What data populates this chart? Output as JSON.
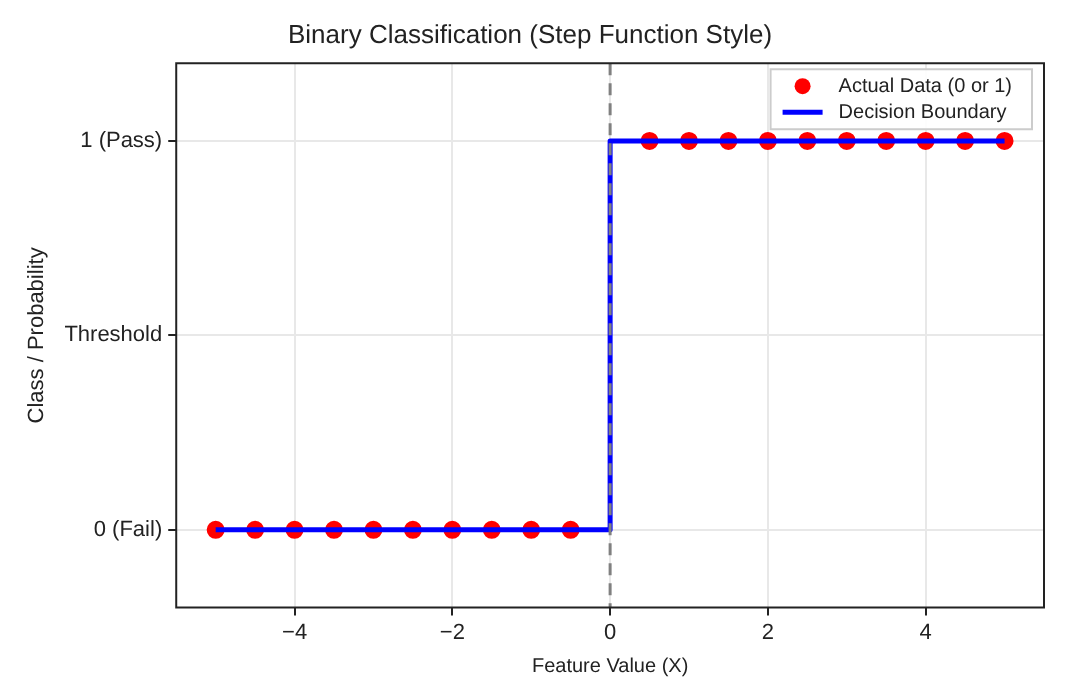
{
  "chart_data": {
    "type": "scatter",
    "title": "Binary Classification (Step Function Style)",
    "xlabel": "Feature Value (X)",
    "ylabel": "Class / Probability",
    "xlim": [
      -5.5,
      5.5
    ],
    "xticks": [
      -4,
      -2,
      0,
      2,
      4
    ],
    "ylim": [
      -0.2,
      1.2
    ],
    "yticks": [
      {
        "value": 0,
        "label": "0 (Fail)"
      },
      {
        "value": 0.5,
        "label": "Threshold"
      },
      {
        "value": 1,
        "label": "1 (Pass)"
      }
    ],
    "grid": true,
    "legend": "top right",
    "series": [
      {
        "name": "Actual Data (0 or 1)",
        "type": "scatter",
        "marker": "circle",
        "color": "#ff0000",
        "x": [
          -5,
          -4.5,
          -4,
          -3.5,
          -3,
          -2.5,
          -2,
          -1.5,
          -1,
          -0.5,
          0.5,
          1,
          1.5,
          2,
          2.5,
          3,
          3.5,
          4,
          4.5,
          5
        ],
        "values": [
          0,
          0,
          0,
          0,
          0,
          0,
          0,
          0,
          0,
          0,
          1,
          1,
          1,
          1,
          1,
          1,
          1,
          1,
          1,
          1
        ]
      },
      {
        "name": "Decision Boundary",
        "type": "step",
        "marker": "none",
        "color": "#0000ff",
        "line_style": "solid",
        "x": [
          -5,
          0,
          5
        ],
        "values": [
          0,
          1,
          1
        ]
      }
    ],
    "ref_lines": [
      {
        "axis": "x",
        "value": 0,
        "color": "#808080",
        "line_style": "dashed"
      }
    ]
  }
}
